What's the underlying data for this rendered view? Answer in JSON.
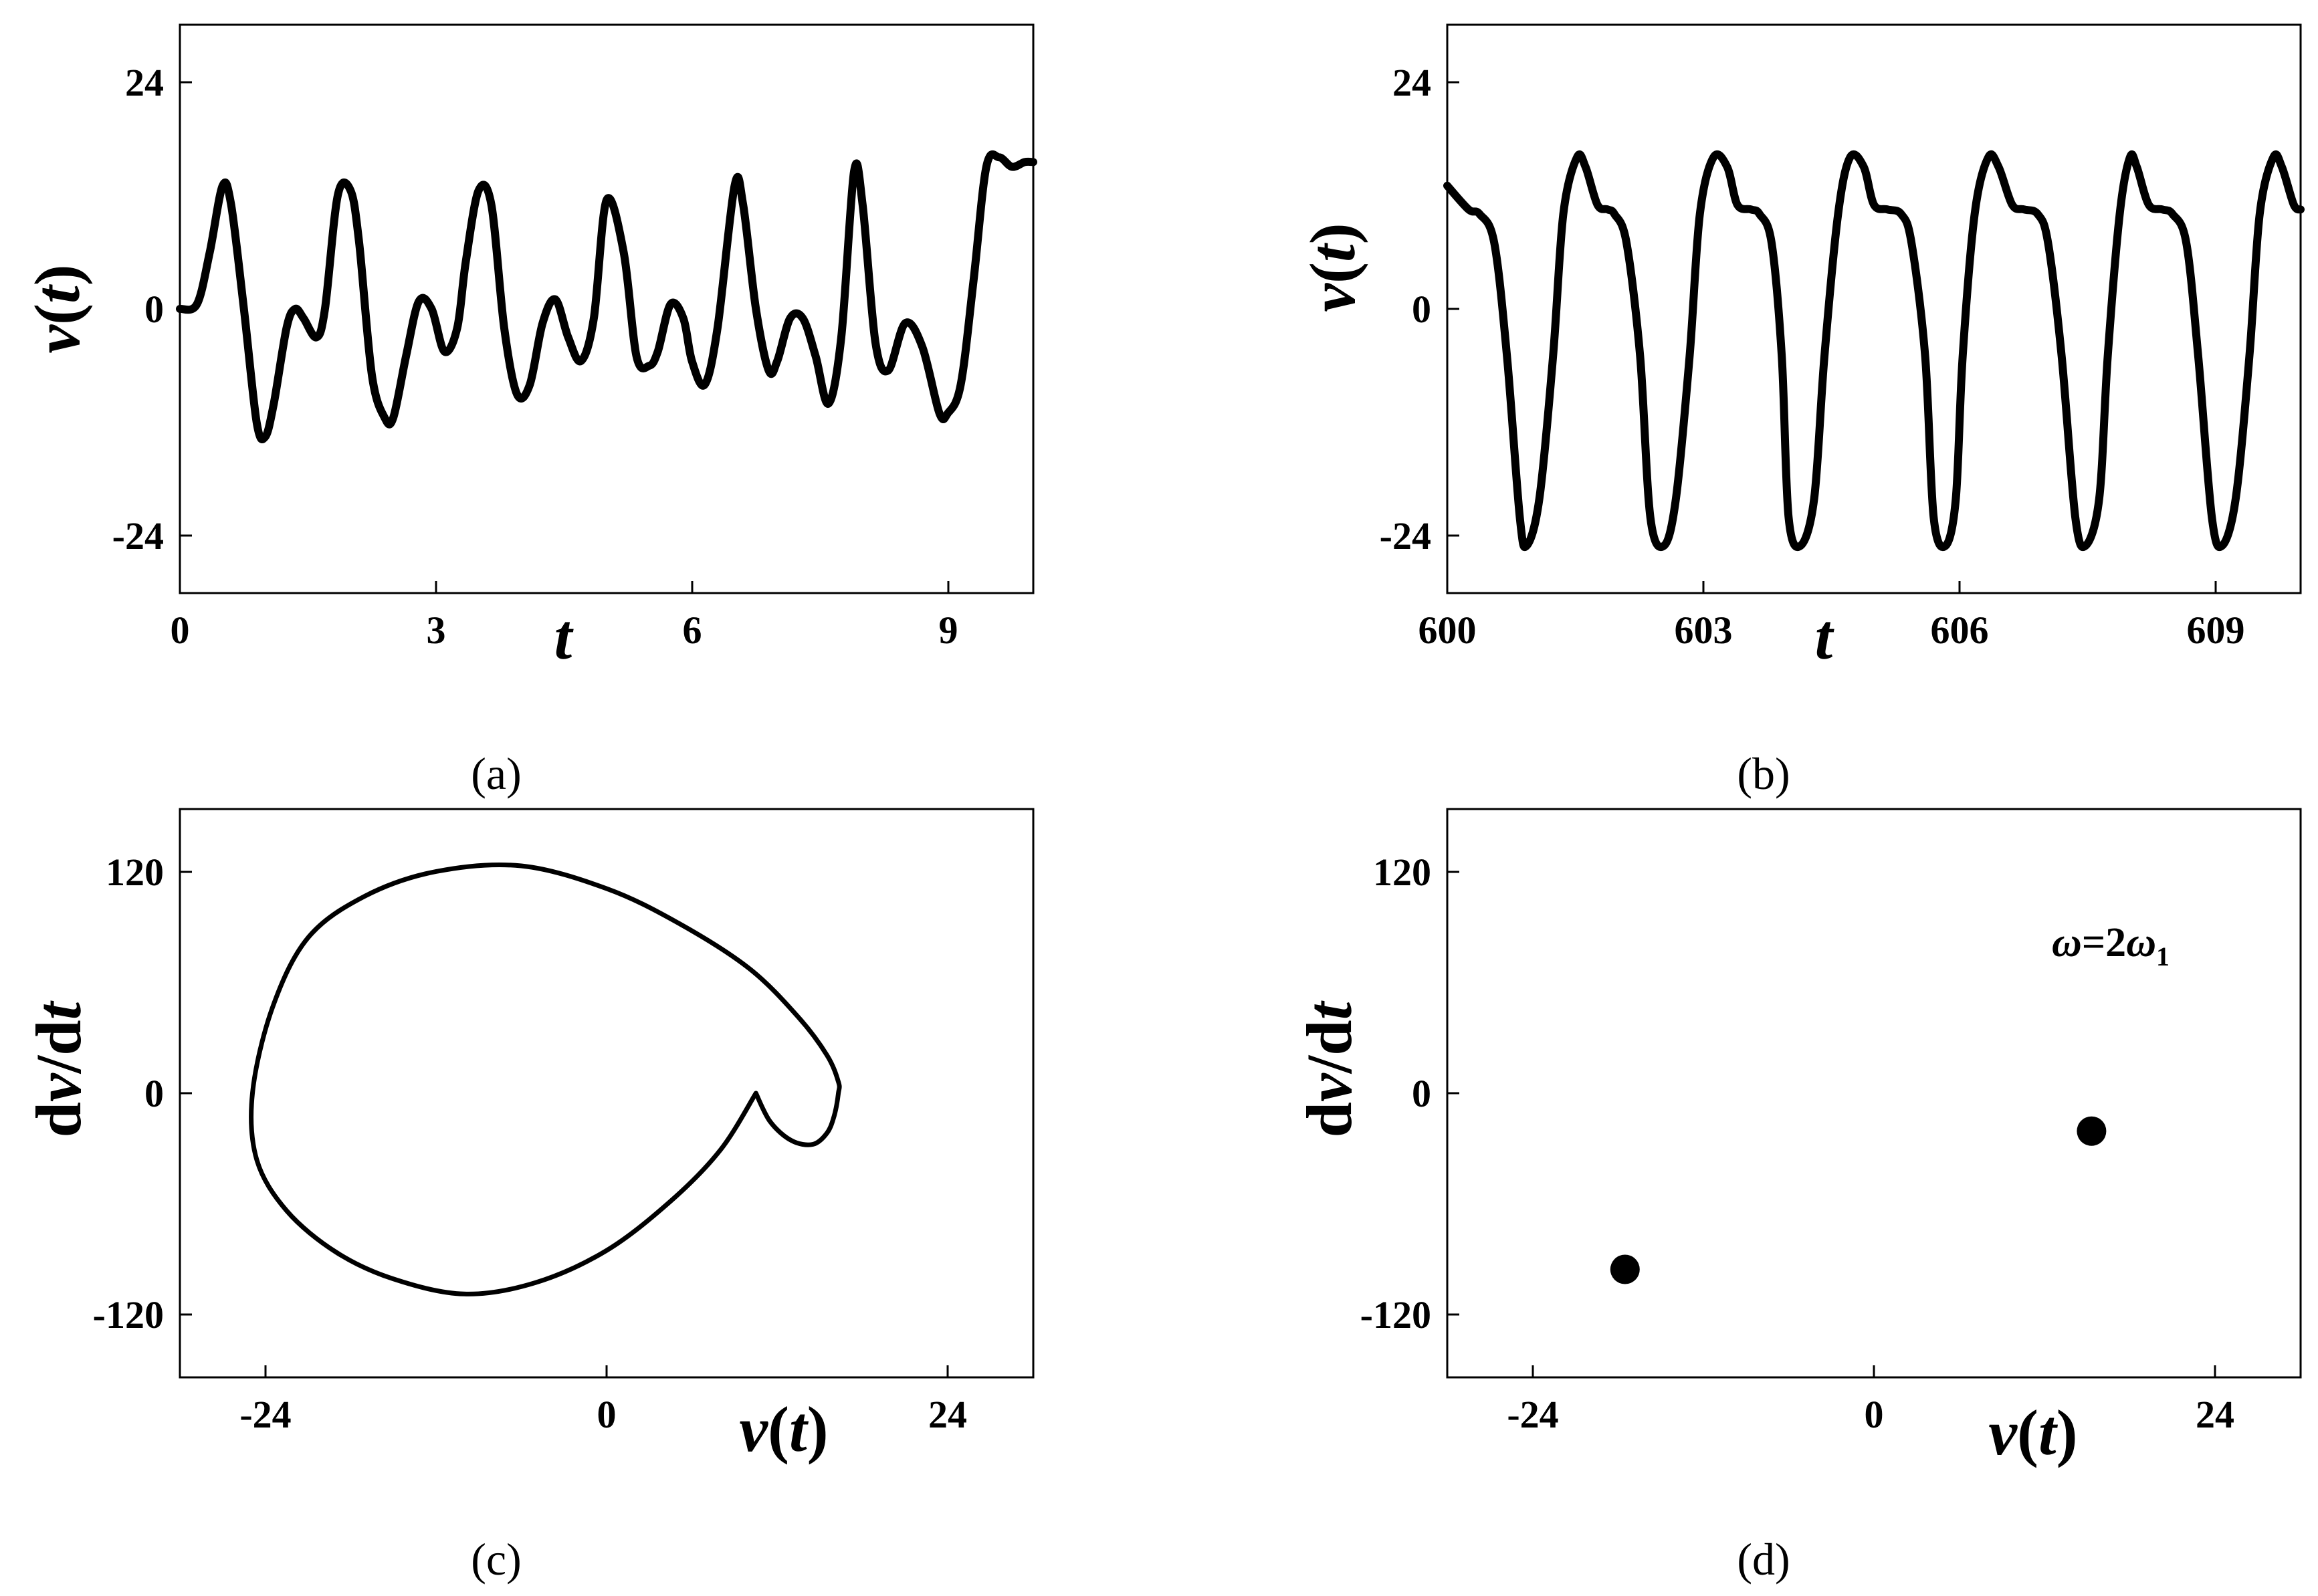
{
  "chart_data": [
    {
      "id": "a",
      "type": "line",
      "caption": "(a)",
      "xlabel": "t",
      "ylabel_parts": [
        "v(",
        "t",
        ")"
      ],
      "xlim": [
        0,
        10
      ],
      "ylim": [
        -30,
        30
      ],
      "xticks": [
        0,
        3,
        6,
        9
      ],
      "xtick_labels": [
        "0",
        "3",
        "6",
        "9"
      ],
      "yticks": [
        -24,
        0,
        24
      ],
      "ytick_labels": [
        "-24",
        "0",
        "24"
      ],
      "series": [
        {
          "x": [
            0,
            0.2,
            0.35,
            0.5,
            0.6,
            0.75,
            0.9,
            1.0,
            1.1,
            1.25,
            1.35,
            1.45,
            1.6,
            1.7,
            1.85,
            2.0,
            2.1,
            2.25,
            2.4,
            2.5,
            2.65,
            2.8,
            2.95,
            3.1,
            3.25,
            3.35,
            3.5,
            3.65,
            3.8,
            3.95,
            4.1,
            4.25,
            4.4,
            4.55,
            4.7,
            4.85,
            5.0,
            5.2,
            5.35,
            5.5,
            5.6,
            5.75,
            5.9,
            6.0,
            6.15,
            6.3,
            6.5,
            6.6,
            6.75,
            6.9,
            7.0,
            7.15,
            7.3,
            7.45,
            7.6,
            7.75,
            7.9,
            8.0,
            8.15,
            8.3,
            8.5,
            8.7,
            8.9,
            9.0,
            9.15,
            9.3,
            9.45,
            9.6,
            9.75,
            9.9,
            10.0
          ],
          "y": [
            0,
            0.5,
            6,
            13,
            11,
            0,
            -12,
            -13.5,
            -10,
            -2,
            0,
            -1,
            -3,
            0,
            12,
            12.5,
            7,
            -7,
            -11.5,
            -11.5,
            -5,
            0.8,
            0,
            -4.5,
            -2,
            5,
            12.5,
            11,
            -2,
            -9,
            -8,
            -1.5,
            1,
            -3,
            -5.5,
            -1,
            11.5,
            6,
            -5,
            -6,
            -4.5,
            0.5,
            -1,
            -5.5,
            -8,
            -2,
            13,
            11,
            0,
            -6.5,
            -5.5,
            -1,
            -1,
            -5,
            -10,
            -3,
            14.5,
            11,
            -3.5,
            -6.5,
            -1.5,
            -4,
            -11,
            -11,
            -8,
            3,
            15,
            16,
            15,
            15.5,
            15.5
          ]
        }
      ]
    },
    {
      "id": "b",
      "type": "line",
      "caption": "(b)",
      "xlabel": "t",
      "ylabel_parts": [
        "v(",
        "t",
        ")"
      ],
      "xlim": [
        600,
        610
      ],
      "ylim": [
        -30,
        30
      ],
      "xticks": [
        600,
        603,
        606,
        609
      ],
      "xtick_labels": [
        "600",
        "603",
        "606",
        "609"
      ],
      "yticks": [
        -24,
        0,
        24
      ],
      "ytick_labels": [
        "-24",
        "0",
        "24"
      ],
      "series": [
        {
          "x": [
            600.0,
            600.25,
            600.38,
            600.55,
            600.7,
            600.85,
            600.93,
            601.08,
            601.24,
            601.36,
            601.52,
            601.62,
            601.76,
            601.88,
            601.96,
            602.1,
            602.26,
            602.38,
            602.54,
            602.68,
            602.84,
            602.96,
            603.12,
            603.28,
            603.4,
            603.56,
            603.66,
            603.8,
            603.92,
            604.0,
            604.14,
            604.3,
            604.42,
            604.58,
            604.72,
            604.88,
            605.0,
            605.16,
            605.32,
            605.44,
            605.6,
            605.7,
            605.84,
            605.96,
            606.04,
            606.18,
            606.34,
            606.46,
            606.62,
            606.76,
            606.92,
            607.04,
            607.2,
            607.36,
            607.48,
            607.64,
            607.74,
            607.88,
            608.0,
            608.08,
            608.22,
            608.38,
            608.5,
            608.66,
            608.8,
            608.96,
            609.08,
            609.24,
            609.4,
            609.52,
            609.68,
            609.78,
            609.92,
            610.0
          ],
          "y": [
            13,
            10.5,
            10,
            7,
            -5,
            -22,
            -25,
            -20,
            -5,
            10,
            16,
            15,
            11,
            10.5,
            10,
            7,
            -5,
            -22,
            -25,
            -20,
            -5,
            10,
            16,
            15,
            11,
            10.5,
            10,
            7,
            -5,
            -22,
            -25,
            -20,
            -5,
            10,
            16,
            15,
            11,
            10.5,
            10,
            7,
            -5,
            -22,
            -25,
            -20,
            -5,
            10,
            16,
            15,
            11,
            10.5,
            10,
            7,
            -5,
            -22,
            -25,
            -20,
            -5,
            10,
            16,
            15,
            11,
            10.5,
            10,
            7,
            -5,
            -22,
            -25,
            -20,
            -5,
            10,
            16,
            15,
            11,
            10.5
          ]
        }
      ]
    },
    {
      "id": "c",
      "type": "line",
      "caption": "(c)",
      "xlabel_parts": [
        "v(",
        "t",
        ")"
      ],
      "ylabel_parts": [
        "d",
        "v",
        "/d",
        "t"
      ],
      "xlim": [
        -30,
        30
      ],
      "ylim": [
        -150,
        150
      ],
      "xticks": [
        -24,
        0,
        24
      ],
      "xtick_labels": [
        "-24",
        "0",
        "24"
      ],
      "yticks": [
        -120,
        0,
        120
      ],
      "ytick_labels": [
        "-120",
        "0",
        "120"
      ],
      "series": [
        {
          "x": [
            10.5,
            11.5,
            13,
            14.5,
            15.5,
            16,
            16.3,
            16.3,
            15.5,
            13.5,
            10,
            5,
            0,
            -6,
            -12,
            -17,
            -21,
            -23.5,
            -24.9,
            -24.6,
            -22.5,
            -19,
            -15,
            -10,
            -5,
            0,
            4.5,
            8,
            10.5
          ],
          "y": [
            0,
            -15,
            -25,
            -27,
            -21,
            -12,
            0,
            6,
            20,
            40,
            66,
            90,
            108,
            120,
            117,
            104,
            82,
            45,
            0,
            -35,
            -62,
            -84,
            -98,
            -106,
            -100,
            -83,
            -57,
            -30,
            0
          ]
        }
      ]
    },
    {
      "id": "d",
      "type": "scatter",
      "caption": "(d)",
      "xlabel_parts": [
        "v(",
        "t",
        ")"
      ],
      "ylabel_parts": [
        "d",
        "v",
        "/d",
        "t"
      ],
      "xlim": [
        -30,
        30
      ],
      "ylim": [
        -150,
        150
      ],
      "xticks": [
        -24,
        0,
        24
      ],
      "xtick_labels": [
        "-24",
        "0",
        "24"
      ],
      "yticks": [
        -120,
        0,
        120
      ],
      "ytick_labels": [
        "-120",
        "0",
        "120"
      ],
      "annotation": {
        "symbol": "ω",
        "equals": "=2",
        "symbol2": "ω",
        "subscript": "1"
      },
      "series": [
        {
          "x": [
            -17.5,
            15.3
          ],
          "y": [
            -93,
            -20
          ]
        }
      ]
    }
  ]
}
